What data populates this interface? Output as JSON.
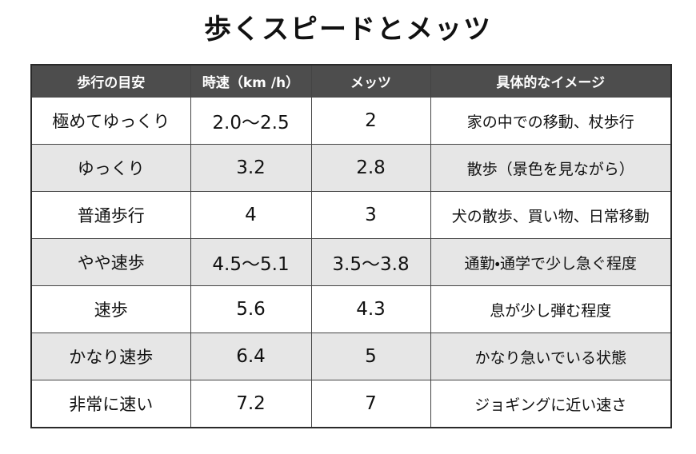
{
  "header": {
    "title": "歩くスピードとメッツ"
  },
  "table": {
    "columns": [
      "歩行の目安",
      "時速（km /h）",
      "メッツ",
      "具体的なイメージ"
    ],
    "rows": [
      [
        "極めてゆっくり",
        "2.0～2.5",
        "2",
        "家の中での移動、杖歩行"
      ],
      [
        "ゆっくり",
        "3.2",
        "2.8",
        "散歩（景色を見ながら）"
      ],
      [
        "普通歩行",
        "4",
        "3",
        "犬の散歩、買い物、日常移動"
      ],
      [
        "やや速歩",
        "4.5～5.1",
        "3.5～3.8",
        "通勤・通学で少し急ぐ程度"
      ],
      [
        "速歩",
        "5.6",
        "4.3",
        "息が少し弾む程度"
      ],
      [
        "かなり速歩",
        "6.4",
        "5",
        "かなり急いでいる状態"
      ],
      [
        "非常に速い",
        "7.2",
        "7",
        "ジョギングに近い速さ"
      ]
    ]
  }
}
